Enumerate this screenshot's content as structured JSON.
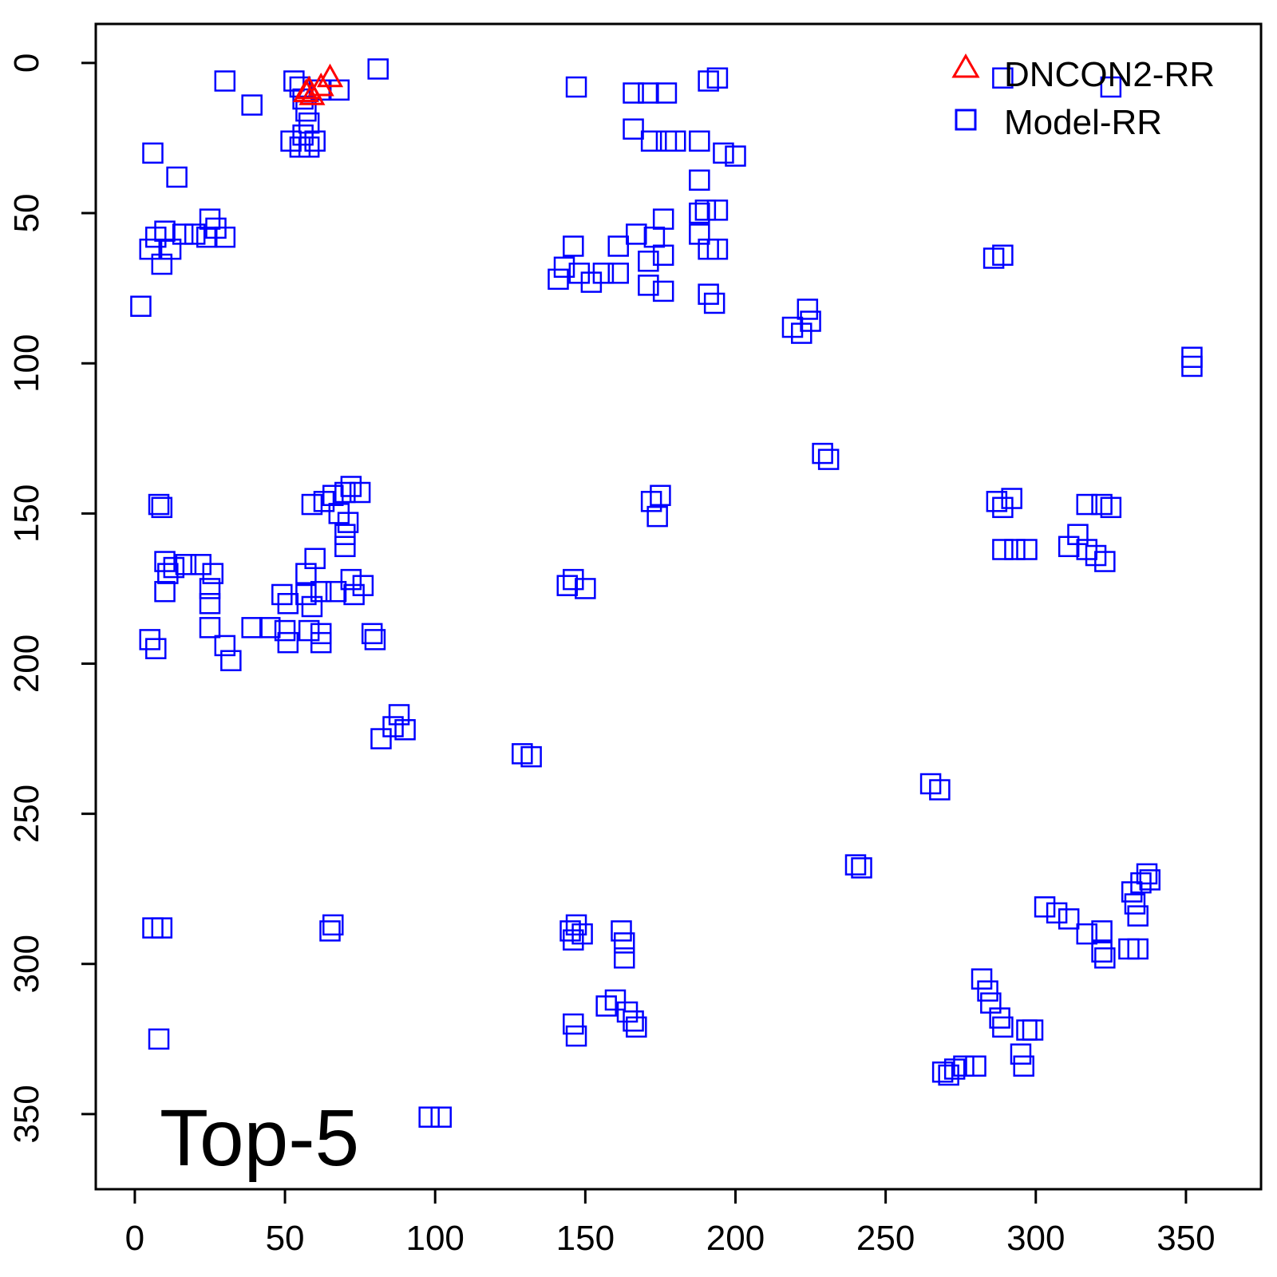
{
  "chart_data": {
    "type": "scatter",
    "title": "",
    "xlabel": "",
    "ylabel": "",
    "xlim": [
      -13,
      375
    ],
    "ylim": [
      -13,
      375
    ],
    "y_reversed": true,
    "grid": false,
    "legend_position": "top-right",
    "x_ticks": [
      0,
      50,
      100,
      150,
      200,
      250,
      300,
      350
    ],
    "y_ticks": [
      0,
      50,
      100,
      150,
      200,
      250,
      300,
      350
    ],
    "x_tick_labels": [
      "0",
      "50",
      "100",
      "150",
      "200",
      "250",
      "300",
      "350"
    ],
    "y_tick_labels": [
      "0",
      "50",
      "100",
      "150",
      "200",
      "250",
      "300",
      "350"
    ],
    "annotation": "Top-5",
    "series": [
      {
        "name": "DNCON2-RR",
        "marker": "triangle",
        "color": "#ff0000",
        "points": [
          [
            57,
            10
          ],
          [
            58,
            9
          ],
          [
            59,
            11
          ],
          [
            62,
            8
          ],
          [
            65,
            5
          ]
        ]
      },
      {
        "name": "Model-RR",
        "marker": "square",
        "color": "#0000ff",
        "points": [
          [
            30,
            6
          ],
          [
            39,
            14
          ],
          [
            81,
            2
          ],
          [
            53,
            6
          ],
          [
            55,
            8
          ],
          [
            56,
            12
          ],
          [
            57,
            16
          ],
          [
            58,
            20
          ],
          [
            56,
            24
          ],
          [
            60,
            26
          ],
          [
            55,
            28
          ],
          [
            52,
            26
          ],
          [
            58,
            28
          ],
          [
            62,
            9
          ],
          [
            68,
            9
          ],
          [
            6,
            30
          ],
          [
            14,
            38
          ],
          [
            2,
            81
          ],
          [
            5,
            62
          ],
          [
            7,
            58
          ],
          [
            10,
            56
          ],
          [
            12,
            62
          ],
          [
            9,
            67
          ],
          [
            16,
            57
          ],
          [
            20,
            57
          ],
          [
            25,
            52
          ],
          [
            27,
            55
          ],
          [
            30,
            58
          ],
          [
            24,
            58
          ],
          [
            147,
            8
          ],
          [
            166,
            10
          ],
          [
            171,
            10
          ],
          [
            177,
            10
          ],
          [
            166,
            22
          ],
          [
            172,
            26
          ],
          [
            177,
            26
          ],
          [
            180,
            26
          ],
          [
            188,
            26
          ],
          [
            191,
            6
          ],
          [
            194,
            5
          ],
          [
            196,
            30
          ],
          [
            200,
            31
          ],
          [
            188,
            39
          ],
          [
            188,
            50
          ],
          [
            190,
            49
          ],
          [
            194,
            49
          ],
          [
            188,
            57
          ],
          [
            191,
            62
          ],
          [
            194,
            62
          ],
          [
            176,
            52
          ],
          [
            173,
            58
          ],
          [
            167,
            57
          ],
          [
            161,
            61
          ],
          [
            171,
            66
          ],
          [
            176,
            64
          ],
          [
            143,
            68
          ],
          [
            146,
            61
          ],
          [
            141,
            72
          ],
          [
            148,
            70
          ],
          [
            152,
            73
          ],
          [
            156,
            70
          ],
          [
            161,
            70
          ],
          [
            171,
            74
          ],
          [
            176,
            76
          ],
          [
            191,
            77
          ],
          [
            193,
            80
          ],
          [
            219,
            88
          ],
          [
            222,
            90
          ],
          [
            225,
            86
          ],
          [
            224,
            82
          ],
          [
            289,
            5
          ],
          [
            325,
            8
          ],
          [
            286,
            65
          ],
          [
            289,
            64
          ],
          [
            352,
            98
          ],
          [
            352,
            101
          ],
          [
            229,
            130
          ],
          [
            231,
            132
          ],
          [
            172,
            146
          ],
          [
            175,
            144
          ],
          [
            174,
            151
          ],
          [
            287,
            146
          ],
          [
            289,
            148
          ],
          [
            292,
            145
          ],
          [
            289,
            162
          ],
          [
            293,
            162
          ],
          [
            297,
            162
          ],
          [
            311,
            161
          ],
          [
            314,
            157
          ],
          [
            317,
            162
          ],
          [
            320,
            164
          ],
          [
            323,
            166
          ],
          [
            317,
            147
          ],
          [
            322,
            147
          ],
          [
            325,
            148
          ],
          [
            144,
            174
          ],
          [
            146,
            172
          ],
          [
            150,
            175
          ],
          [
            8,
            147
          ],
          [
            9,
            148
          ],
          [
            10,
            166
          ],
          [
            11,
            170
          ],
          [
            10,
            176
          ],
          [
            13,
            168
          ],
          [
            17,
            167
          ],
          [
            22,
            167
          ],
          [
            26,
            170
          ],
          [
            25,
            175
          ],
          [
            25,
            180
          ],
          [
            25,
            188
          ],
          [
            5,
            192
          ],
          [
            7,
            195
          ],
          [
            30,
            194
          ],
          [
            32,
            199
          ],
          [
            39,
            188
          ],
          [
            45,
            188
          ],
          [
            50,
            189
          ],
          [
            51,
            193
          ],
          [
            49,
            177
          ],
          [
            51,
            180
          ],
          [
            57,
            177
          ],
          [
            59,
            181
          ],
          [
            57,
            170
          ],
          [
            60,
            165
          ],
          [
            59,
            147
          ],
          [
            63,
            146
          ],
          [
            66,
            144
          ],
          [
            70,
            143
          ],
          [
            72,
            141
          ],
          [
            75,
            143
          ],
          [
            68,
            150
          ],
          [
            71,
            153
          ],
          [
            70,
            157
          ],
          [
            70,
            161
          ],
          [
            62,
            176
          ],
          [
            67,
            176
          ],
          [
            72,
            172
          ],
          [
            76,
            174
          ],
          [
            73,
            177
          ],
          [
            58,
            189
          ],
          [
            62,
            190
          ],
          [
            62,
            193
          ],
          [
            79,
            190
          ],
          [
            80,
            192
          ],
          [
            82,
            225
          ],
          [
            86,
            221
          ],
          [
            88,
            217
          ],
          [
            90,
            222
          ],
          [
            129,
            230
          ],
          [
            132,
            231
          ],
          [
            240,
            267
          ],
          [
            242,
            268
          ],
          [
            265,
            240
          ],
          [
            268,
            242
          ],
          [
            6,
            288
          ],
          [
            9,
            288
          ],
          [
            65,
            289
          ],
          [
            66,
            287
          ],
          [
            8,
            325
          ],
          [
            98,
            351
          ],
          [
            102,
            351
          ],
          [
            145,
            289
          ],
          [
            147,
            287
          ],
          [
            149,
            290
          ],
          [
            146,
            292
          ],
          [
            162,
            289
          ],
          [
            163,
            293
          ],
          [
            163,
            298
          ],
          [
            157,
            314
          ],
          [
            160,
            312
          ],
          [
            164,
            316
          ],
          [
            166,
            319
          ],
          [
            167,
            321
          ],
          [
            146,
            320
          ],
          [
            147,
            324
          ],
          [
            269,
            336
          ],
          [
            271,
            337
          ],
          [
            273,
            335
          ],
          [
            276,
            334
          ],
          [
            280,
            334
          ],
          [
            282,
            305
          ],
          [
            284,
            309
          ],
          [
            285,
            313
          ],
          [
            288,
            318
          ],
          [
            289,
            321
          ],
          [
            295,
            330
          ],
          [
            296,
            334
          ],
          [
            297,
            322
          ],
          [
            299,
            322
          ],
          [
            303,
            281
          ],
          [
            307,
            283
          ],
          [
            311,
            285
          ],
          [
            317,
            290
          ],
          [
            322,
            289
          ],
          [
            322,
            296
          ],
          [
            323,
            298
          ],
          [
            331,
            295
          ],
          [
            334,
            295
          ],
          [
            332,
            276
          ],
          [
            333,
            280
          ],
          [
            334,
            284
          ],
          [
            335,
            273
          ],
          [
            337,
            270
          ],
          [
            338,
            272
          ]
        ]
      }
    ]
  }
}
